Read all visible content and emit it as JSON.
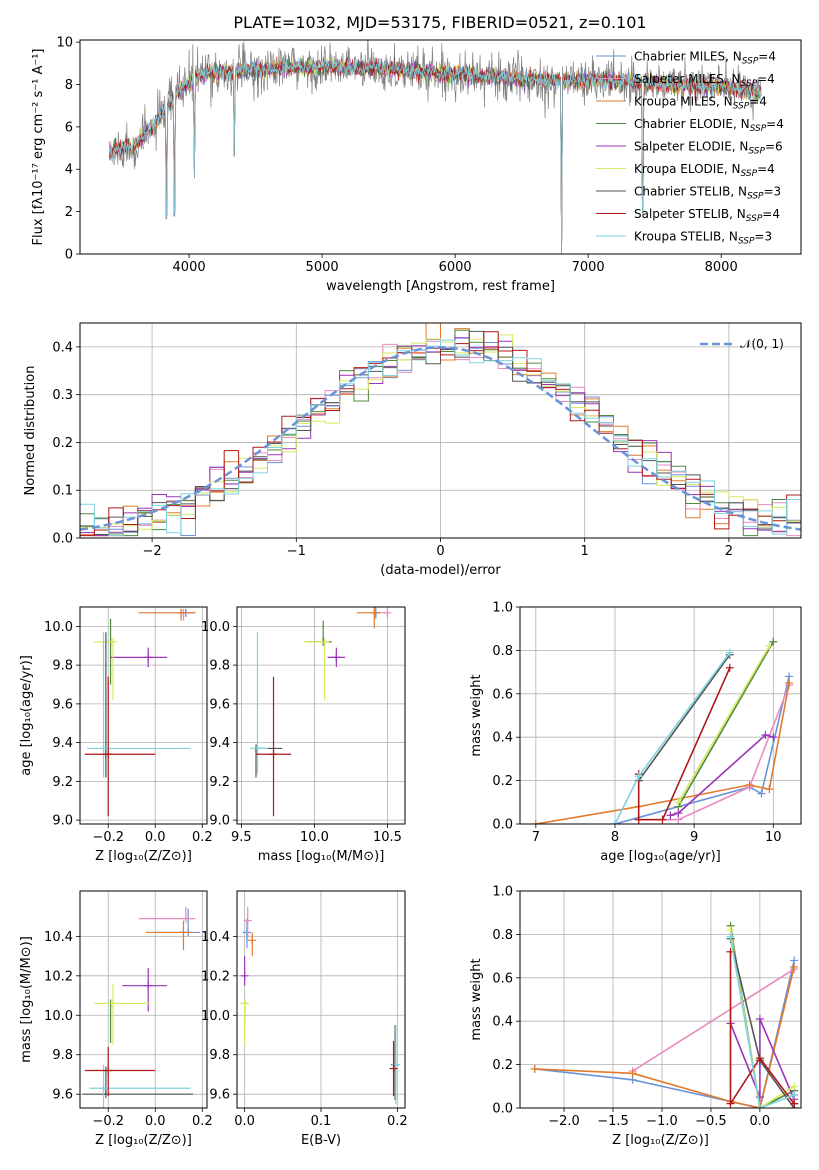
{
  "colors": {
    "Chabrier MILES": "#6a93d8",
    "Salpeter MILES": "#e98bc0",
    "Kroupa MILES": "#e07b2e",
    "Chabrier ELODIE": "#4f8a3e",
    "Salpeter ELODIE": "#9b35b8",
    "Kroupa ELODIE": "#d7ea62",
    "Chabrier STELIB": "#555555",
    "Salpeter STELIB": "#b01818",
    "Kroupa STELIB": "#7fd3e0",
    "normal_curve": "#6a93d8",
    "grid": "#b0b0b0",
    "data_spectrum": "#808080"
  },
  "chart_data": [
    {
      "type": "line",
      "title": "PLATE=1032, MJD=53175, FIBERID=0521, z=0.101",
      "xlabel": "wavelength [Angstrom, rest frame]",
      "ylabel": "Flux [fλ10⁻¹⁷ erg cm⁻² s⁻¹ A⁻¹]",
      "xlim": [
        3180,
        8600
      ],
      "ylim": [
        0,
        10.1
      ],
      "xticks": [
        4000,
        5000,
        6000,
        7000,
        8000
      ],
      "yticks": [
        0,
        2,
        4,
        6,
        8,
        10
      ],
      "grid": false,
      "legend_position": "right",
      "legend": [
        {
          "model": "Chabrier MILES",
          "nssp": "4"
        },
        {
          "model": "Salpeter MILES",
          "nssp": "4"
        },
        {
          "model": "Kroupa MILES",
          "nssp": "4"
        },
        {
          "model": "Chabrier ELODIE",
          "nssp": "4"
        },
        {
          "model": "Salpeter ELODIE",
          "nssp": "6"
        },
        {
          "model": "Kroupa ELODIE",
          "nssp": "4"
        },
        {
          "model": "Chabrier STELIB",
          "nssp": "3"
        },
        {
          "model": "Salpeter STELIB",
          "nssp": "4"
        },
        {
          "model": "Kroupa STELIB",
          "nssp": "3"
        }
      ],
      "continuum": {
        "x": [
          3400,
          3500,
          3600,
          3700,
          3800,
          3900,
          4000,
          4100,
          4300,
          4500,
          4800,
          5200,
          5600,
          6000,
          6400,
          6800,
          7200,
          7600,
          8000,
          8300
        ],
        "y": [
          4.8,
          5.0,
          5.2,
          5.8,
          6.6,
          7.6,
          8.1,
          8.5,
          8.6,
          8.7,
          8.8,
          8.8,
          8.7,
          8.5,
          8.3,
          8.2,
          8.2,
          8.0,
          7.9,
          7.6
        ]
      },
      "dips": [
        {
          "x": 3830,
          "y": 0.0
        },
        {
          "x": 3890,
          "y": 0.0
        },
        {
          "x": 4040,
          "y": 3.6
        },
        {
          "x": 4340,
          "y": 4.6
        },
        {
          "x": 3570,
          "y": 4.5
        },
        {
          "x": 6800,
          "y": 0.0
        },
        {
          "x": 7410,
          "y": 0.0
        }
      ]
    },
    {
      "type": "line",
      "xlabel": "(data-model)/error",
      "ylabel": "Normed distribution",
      "xlim": [
        -2.5,
        2.5
      ],
      "ylim": [
        0,
        0.45
      ],
      "xticks": [
        -2,
        -1,
        0,
        1,
        2
      ],
      "yticks": [
        0.0,
        0.1,
        0.2,
        0.3,
        0.4
      ],
      "grid": true,
      "legend": [
        "𝒩(0, 1)"
      ],
      "legend_position": "top-right"
    },
    {
      "type": "scatter",
      "xlabel": "Z [log₁₀(Z/Z⊙)]",
      "ylabel": "age  [log₁₀(age/yr)]",
      "xlim": [
        -0.32,
        0.22
      ],
      "ylim": [
        8.98,
        10.1
      ],
      "xticks": [
        -0.2,
        0.0,
        0.2
      ],
      "xticklabels": [
        "−0.2",
        "0.0",
        "0.2"
      ],
      "yticks": [
        9.0,
        9.2,
        9.4,
        9.6,
        9.8,
        10.0
      ],
      "grid": true,
      "points": [
        {
          "model": "Chabrier MILES",
          "x": 0.13,
          "y": 10.07,
          "xerr": [
            0.0,
            0.04
          ],
          "yerr": [
            0.02,
            0.02
          ]
        },
        {
          "model": "Salpeter MILES",
          "x": 0.12,
          "y": 10.07,
          "xerr": [
            0.0,
            0.04
          ],
          "yerr": [
            0.04,
            0.02
          ]
        },
        {
          "model": "Kroupa MILES",
          "x": 0.11,
          "y": 10.07,
          "xerr": [
            0.18,
            0.06
          ],
          "yerr": [
            0.04,
            0.02
          ]
        },
        {
          "model": "Chabrier ELODIE",
          "x": -0.19,
          "y": 9.92,
          "xerr": [
            0.01,
            0.0
          ],
          "yerr": [
            0.22,
            0.12
          ]
        },
        {
          "model": "Salpeter ELODIE",
          "x": -0.03,
          "y": 9.84,
          "xerr": [
            0.16,
            0.08
          ],
          "yerr": [
            0.05,
            0.05
          ]
        },
        {
          "model": "Kroupa ELODIE",
          "x": -0.18,
          "y": 9.92,
          "xerr": [
            0.08,
            0.0
          ],
          "yerr": [
            0.3,
            0.0
          ]
        },
        {
          "model": "Chabrier STELIB",
          "x": -0.21,
          "y": 9.34,
          "xerr": [
            0.0,
            0.0
          ],
          "yerr": [
            0.12,
            0.63
          ]
        },
        {
          "model": "Kroupa STELIB",
          "x": -0.22,
          "y": 9.37,
          "xerr": [
            0.07,
            0.37
          ],
          "yerr": [
            0.15,
            0.6
          ]
        },
        {
          "model": "Salpeter STELIB",
          "x": -0.2,
          "y": 9.34,
          "xerr": [
            0.1,
            0.2
          ],
          "yerr": [
            0.32,
            0.4
          ]
        }
      ]
    },
    {
      "type": "scatter",
      "xlabel": "mass [log₁₀(M/M⊙)]",
      "xlim": [
        9.47,
        10.62
      ],
      "ylim": [
        8.98,
        10.1
      ],
      "xticks": [
        9.5,
        10.0,
        10.5
      ],
      "xticklabels": [
        "9.5",
        "10.0",
        "10.5"
      ],
      "yticks": [
        9.0,
        9.2,
        9.4,
        9.6,
        9.8,
        10.0
      ],
      "grid": true,
      "points": [
        {
          "model": "Chabrier MILES",
          "x": 10.42,
          "y": 10.07,
          "xerr": [
            0.0,
            0.0
          ],
          "yerr": [
            0.03,
            0.03
          ]
        },
        {
          "model": "Salpeter MILES",
          "x": 10.5,
          "y": 10.07,
          "xerr": [
            0.08,
            0.0
          ],
          "yerr": [
            0.03,
            0.03
          ]
        },
        {
          "model": "Kroupa MILES",
          "x": 10.41,
          "y": 10.07,
          "xerr": [
            0.12,
            0.04
          ],
          "yerr": [
            0.08,
            0.03
          ]
        },
        {
          "model": "Chabrier ELODIE",
          "x": 10.06,
          "y": 9.92,
          "xerr": [
            0.12,
            0.06
          ],
          "yerr": [
            0.0,
            0.11
          ]
        },
        {
          "model": "Salpeter ELODIE",
          "x": 10.15,
          "y": 9.84,
          "xerr": [
            0.06,
            0.06
          ],
          "yerr": [
            0.05,
            0.05
          ]
        },
        {
          "model": "Kroupa ELODIE",
          "x": 10.07,
          "y": 9.92,
          "xerr": [
            0.14,
            0.03
          ],
          "yerr": [
            0.3,
            0.0
          ]
        },
        {
          "model": "Chabrier STELIB",
          "x": 9.6,
          "y": 9.37,
          "xerr": [
            0.0,
            0.18
          ],
          "yerr": [
            0.15,
            0.0
          ]
        },
        {
          "model": "Kroupa STELIB",
          "x": 9.61,
          "y": 9.37,
          "xerr": [
            0.05,
            0.07
          ],
          "yerr": [
            0.13,
            0.6
          ]
        },
        {
          "model": "Salpeter STELIB",
          "x": 9.72,
          "y": 9.34,
          "xerr": [
            0.12,
            0.12
          ],
          "yerr": [
            0.32,
            0.4
          ]
        }
      ]
    },
    {
      "type": "line",
      "xlabel": "age  [log₁₀(age/yr)]",
      "ylabel": "mass weight",
      "xlim": [
        6.8,
        10.35
      ],
      "ylim": [
        0,
        1.0
      ],
      "xticks": [
        7,
        8,
        9,
        10
      ],
      "yticks": [
        0.0,
        0.2,
        0.4,
        0.6,
        0.8,
        1.0
      ],
      "grid": true,
      "series": [
        {
          "model": "Chabrier MILES",
          "x": [
            8.0,
            9.7,
            9.85,
            10.2
          ],
          "y": [
            0.0,
            0.17,
            0.14,
            0.68
          ]
        },
        {
          "model": "Salpeter MILES",
          "x": [
            8.3,
            8.8,
            9.7,
            10.2
          ],
          "y": [
            0.02,
            0.02,
            0.17,
            0.64
          ]
        },
        {
          "model": "Kroupa MILES",
          "x": [
            7.0,
            8.3,
            9.7,
            9.95,
            10.2
          ],
          "y": [
            0.0,
            0.08,
            0.18,
            0.16,
            0.65
          ]
        },
        {
          "model": "Chabrier ELODIE",
          "x": [
            8.8,
            10.0
          ],
          "y": [
            0.08,
            0.84
          ]
        },
        {
          "model": "Salpeter ELODIE",
          "x": [
            8.7,
            8.8,
            9.9,
            10.0
          ],
          "y": [
            0.04,
            0.05,
            0.41,
            0.4
          ]
        },
        {
          "model": "Kroupa ELODIE",
          "x": [
            8.8,
            9.95
          ],
          "y": [
            0.1,
            0.82
          ]
        },
        {
          "model": "Chabrier STELIB",
          "x": [
            8.3,
            9.45
          ],
          "y": [
            0.2,
            0.78
          ]
        },
        {
          "model": "Salpeter STELIB",
          "x": [
            8.3,
            8.3,
            8.6,
            9.45
          ],
          "y": [
            0.23,
            0.02,
            0.02,
            0.72
          ]
        },
        {
          "model": "Kroupa STELIB",
          "x": [
            8.0,
            8.3,
            9.45
          ],
          "y": [
            0.0,
            0.22,
            0.79
          ]
        }
      ]
    },
    {
      "type": "scatter",
      "xlabel": "Z [log₁₀(Z/Z⊙)]",
      "ylabel": "mass [log₁₀(M/M⊙)]",
      "xlim": [
        -0.32,
        0.22
      ],
      "ylim": [
        9.53,
        10.63
      ],
      "xticks": [
        -0.2,
        0.0,
        0.2
      ],
      "xticklabels": [
        "−0.2",
        "0.0",
        "0.2"
      ],
      "yticks": [
        9.6,
        9.8,
        10.0,
        10.2,
        10.4
      ],
      "grid": true,
      "points": [
        {
          "model": "Chabrier MILES",
          "x": 0.14,
          "y": 10.42,
          "xerr": [
            0.14,
            0.05
          ],
          "yerr": [
            0.0,
            0.12
          ]
        },
        {
          "model": "Salpeter MILES",
          "x": 0.13,
          "y": 10.49,
          "xerr": [
            0.2,
            0.04
          ],
          "yerr": [
            0.0,
            0.06
          ]
        },
        {
          "model": "Kroupa MILES",
          "x": 0.12,
          "y": 10.42,
          "xerr": [
            0.16,
            0.04
          ],
          "yerr": [
            0.09,
            0.06
          ]
        },
        {
          "model": "Chabrier ELODIE",
          "x": -0.19,
          "y": 10.06,
          "xerr": [
            0.0,
            0.0
          ],
          "yerr": [
            0.2,
            0.0
          ]
        },
        {
          "model": "Salpeter ELODIE",
          "x": -0.03,
          "y": 10.15,
          "xerr": [
            0.11,
            0.08
          ],
          "yerr": [
            0.13,
            0.09
          ]
        },
        {
          "model": "Kroupa ELODIE",
          "x": -0.18,
          "y": 10.06,
          "xerr": [
            0.08,
            0.16
          ],
          "yerr": [
            0.21,
            0.1
          ]
        },
        {
          "model": "Chabrier STELIB",
          "x": -0.21,
          "y": 9.6,
          "xerr": [
            0.1,
            0.37
          ],
          "yerr": [
            0.0,
            0.14
          ]
        },
        {
          "model": "Kroupa STELIB",
          "x": -0.22,
          "y": 9.63,
          "xerr": [
            0.06,
            0.37
          ],
          "yerr": [
            0.13,
            0.12
          ]
        },
        {
          "model": "Salpeter STELIB",
          "x": -0.2,
          "y": 9.72,
          "xerr": [
            0.1,
            0.2
          ],
          "yerr": [
            0.13,
            0.12
          ]
        }
      ]
    },
    {
      "type": "scatter",
      "xlabel": "E(B-V)",
      "xlim": [
        -0.01,
        0.21
      ],
      "ylim": [
        9.53,
        10.63
      ],
      "xticks": [
        0.0,
        0.1,
        0.2
      ],
      "xticklabels": [
        "0.0",
        "0.1",
        "0.2"
      ],
      "yticks": [
        9.6,
        9.8,
        10.0,
        10.2,
        10.4
      ],
      "grid": true,
      "points": [
        {
          "model": "Chabrier MILES",
          "x": 0.003,
          "y": 10.42,
          "xerr": [
            0.0,
            0.0
          ],
          "yerr": [
            0.08,
            0.07
          ]
        },
        {
          "model": "Salpeter MILES",
          "x": 0.004,
          "y": 10.48,
          "xerr": [
            0.0,
            0.0
          ],
          "yerr": [
            0.1,
            0.07
          ]
        },
        {
          "model": "Kroupa MILES",
          "x": 0.01,
          "y": 10.38,
          "xerr": [
            0.0,
            0.0
          ],
          "yerr": [
            0.08,
            0.04
          ]
        },
        {
          "model": "Chabrier ELODIE",
          "x": 0.0,
          "y": 10.06,
          "xerr": [
            0.0,
            0.0
          ],
          "yerr": [
            0.1,
            0.0
          ]
        },
        {
          "model": "Salpeter ELODIE",
          "x": 0.0,
          "y": 10.2,
          "xerr": [
            0.0,
            0.0
          ],
          "yerr": [
            0.05,
            0.1
          ]
        },
        {
          "model": "Kroupa ELODIE",
          "x": 0.0,
          "y": 10.06,
          "xerr": [
            0.0,
            0.0
          ],
          "yerr": [
            0.21,
            0.0
          ]
        },
        {
          "model": "Chabrier STELIB",
          "x": 0.197,
          "y": 9.75,
          "xerr": [
            0.0,
            0.0
          ],
          "yerr": [
            0.18,
            0.2
          ]
        },
        {
          "model": "Kroupa STELIB",
          "x": 0.198,
          "y": 9.75,
          "xerr": [
            0.0,
            0.0
          ],
          "yerr": [
            0.2,
            0.2
          ]
        },
        {
          "model": "Salpeter STELIB",
          "x": 0.195,
          "y": 9.73,
          "xerr": [
            0.0,
            0.0
          ],
          "yerr": [
            0.14,
            0.14
          ]
        }
      ]
    },
    {
      "type": "line",
      "xlabel": "Z [log₁₀(Z/Z⊙)]",
      "ylabel": "mass weight",
      "xlim": [
        -2.45,
        0.42
      ],
      "ylim": [
        0,
        1.0
      ],
      "xticks": [
        -2.0,
        -1.5,
        -1.0,
        -0.5,
        0.0
      ],
      "xticklabels": [
        "−2.0",
        "−1.5",
        "−1.0",
        "−0.5",
        "0.0"
      ],
      "yticks": [
        0.0,
        0.2,
        0.4,
        0.6,
        0.8,
        1.0
      ],
      "grid": true,
      "series": [
        {
          "model": "Chabrier MILES",
          "x": [
            -2.3,
            -1.3,
            0.0,
            0.35
          ],
          "y": [
            0.18,
            0.13,
            0.0,
            0.68
          ]
        },
        {
          "model": "Salpeter MILES",
          "x": [
            -1.3,
            0.35
          ],
          "y": [
            0.17,
            0.64
          ]
        },
        {
          "model": "Kroupa MILES",
          "x": [
            -2.3,
            -1.3,
            -0.3,
            0.0,
            0.35
          ],
          "y": [
            0.18,
            0.16,
            0.03,
            0.0,
            0.65
          ]
        },
        {
          "model": "Chabrier ELODIE",
          "x": [
            -0.3,
            0.0,
            0.35
          ],
          "y": [
            0.84,
            0.0,
            0.08
          ]
        },
        {
          "model": "Salpeter ELODIE",
          "x": [
            -0.3,
            0.0,
            0.0,
            0.35,
            0.35
          ],
          "y": [
            0.39,
            0.05,
            0.41,
            0.04,
            0.06
          ]
        },
        {
          "model": "Kroupa ELODIE",
          "x": [
            -0.3,
            0.0,
            0.35
          ],
          "y": [
            0.82,
            0.0,
            0.1
          ]
        },
        {
          "model": "Chabrier STELIB",
          "x": [
            -0.3,
            0.0,
            0.35
          ],
          "y": [
            0.78,
            0.22,
            0.0
          ]
        },
        {
          "model": "Salpeter STELIB",
          "x": [
            -0.3,
            -0.3,
            0.0,
            0.35,
            0.35
          ],
          "y": [
            0.72,
            0.02,
            0.23,
            0.02,
            0.02
          ]
        },
        {
          "model": "Kroupa STELIB",
          "x": [
            -0.3,
            0.0,
            0.35
          ],
          "y": [
            0.79,
            0.0,
            0.06
          ]
        }
      ]
    }
  ]
}
